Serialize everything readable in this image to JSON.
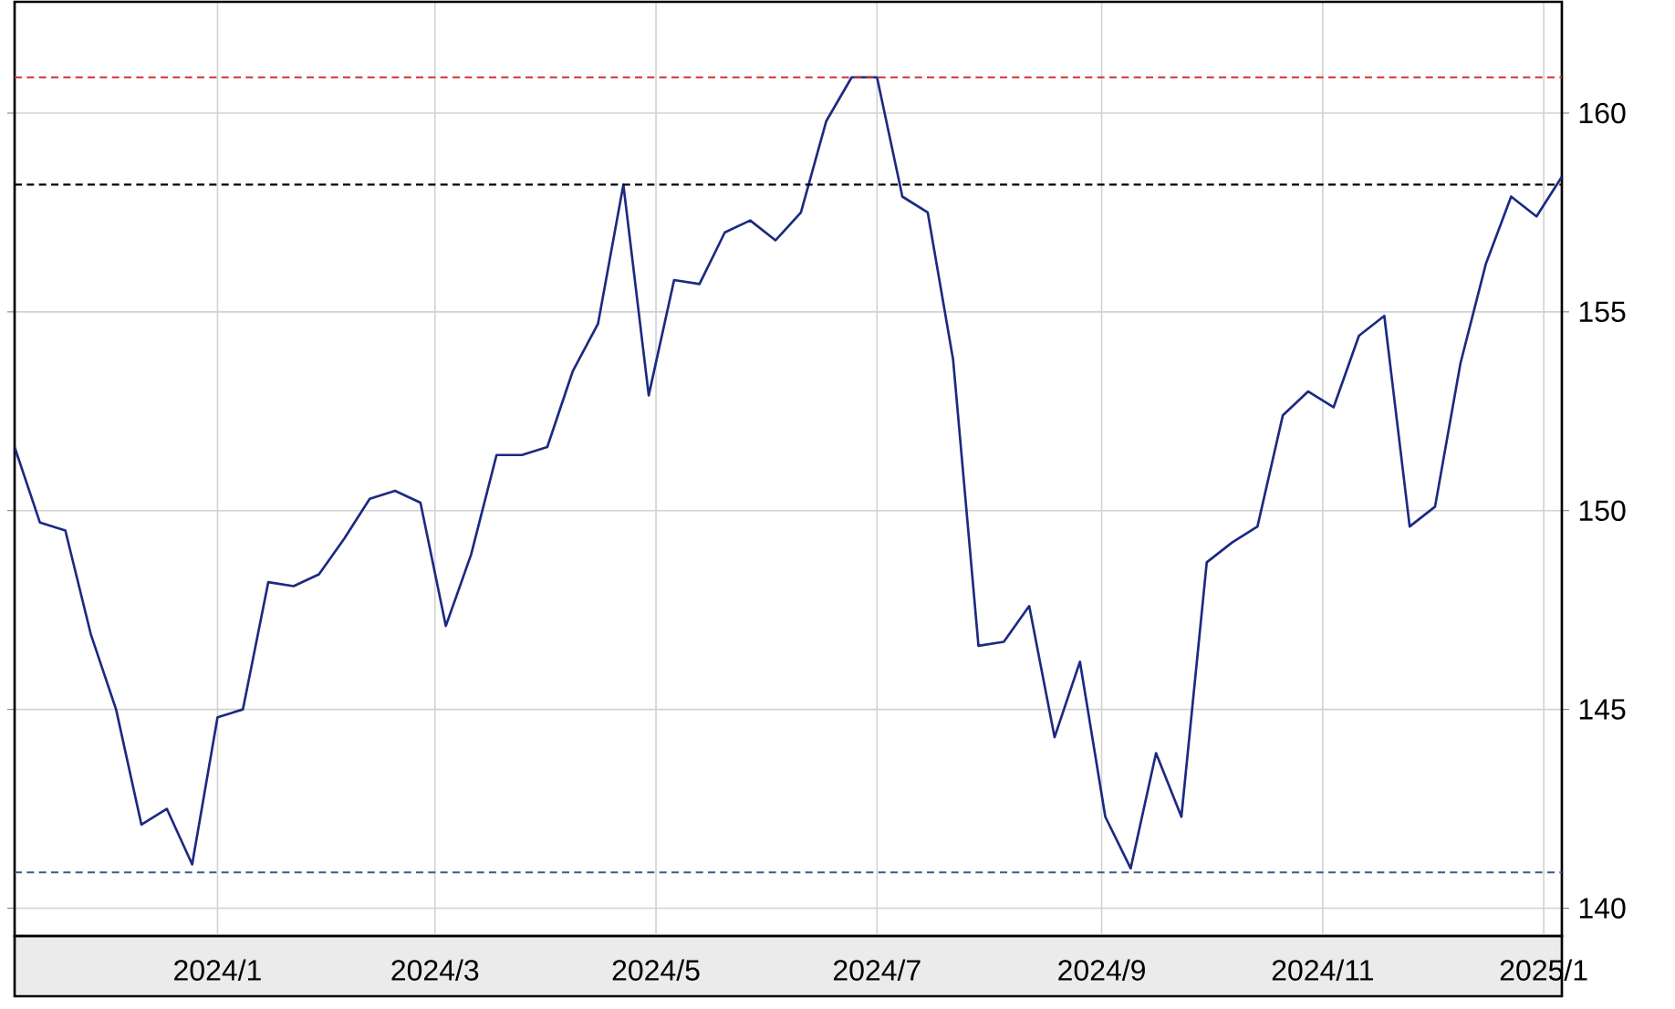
{
  "chart_data": {
    "type": "line",
    "x": [
      "2023-11-06",
      "2023-11-13",
      "2023-11-20",
      "2023-11-27",
      "2023-12-04",
      "2023-12-11",
      "2023-12-18",
      "2023-12-25",
      "2024-01-01",
      "2024-01-08",
      "2024-01-15",
      "2024-01-22",
      "2024-01-29",
      "2024-02-05",
      "2024-02-12",
      "2024-02-19",
      "2024-02-26",
      "2024-03-04",
      "2024-03-11",
      "2024-03-18",
      "2024-03-25",
      "2024-04-01",
      "2024-04-08",
      "2024-04-15",
      "2024-04-22",
      "2024-04-29",
      "2024-05-06",
      "2024-05-13",
      "2024-05-20",
      "2024-05-27",
      "2024-06-03",
      "2024-06-10",
      "2024-06-17",
      "2024-06-24",
      "2024-07-01",
      "2024-07-08",
      "2024-07-15",
      "2024-07-22",
      "2024-07-29",
      "2024-08-05",
      "2024-08-12",
      "2024-08-19",
      "2024-08-26",
      "2024-09-02",
      "2024-09-09",
      "2024-09-16",
      "2024-09-23",
      "2024-09-30",
      "2024-10-07",
      "2024-10-14",
      "2024-10-21",
      "2024-10-28",
      "2024-11-04",
      "2024-11-11",
      "2024-11-18",
      "2024-11-25",
      "2024-12-02",
      "2024-12-09",
      "2024-12-16",
      "2024-12-23",
      "2024-12-30",
      "2025-01-06"
    ],
    "series": [
      {
        "color": "#1c2a80",
        "values": [
          151.6,
          149.7,
          149.5,
          146.9,
          145.0,
          142.1,
          142.5,
          141.1,
          144.8,
          145.0,
          148.2,
          148.1,
          148.4,
          149.3,
          150.3,
          150.5,
          150.2,
          147.1,
          148.9,
          151.4,
          151.4,
          151.6,
          153.5,
          154.7,
          158.2,
          152.9,
          155.8,
          155.7,
          157.0,
          157.3,
          156.8,
          157.5,
          159.8,
          160.9,
          160.9,
          157.9,
          157.5,
          153.8,
          146.6,
          146.7,
          147.6,
          144.3,
          146.2,
          142.3,
          141.0,
          143.9,
          142.3,
          148.7,
          149.2,
          149.6,
          152.4,
          153.0,
          152.6,
          154.4,
          154.9,
          149.6,
          150.1,
          153.7,
          156.2,
          157.9,
          157.4,
          158.4
        ]
      }
    ],
    "xlim": [
      "2023-11-06",
      "2025-01-06"
    ],
    "ylim": [
      139.3,
      162.8
    ],
    "xticks": [
      {
        "value": "2024-01-01",
        "label": "2024/1"
      },
      {
        "value": "2024-03-01",
        "label": "2024/3"
      },
      {
        "value": "2024-05-01",
        "label": "2024/5"
      },
      {
        "value": "2024-07-01",
        "label": "2024/7"
      },
      {
        "value": "2024-09-01",
        "label": "2024/9"
      },
      {
        "value": "2024-11-01",
        "label": "2024/11"
      },
      {
        "value": "2025-01-01",
        "label": "2025/1"
      }
    ],
    "yticks": [
      140,
      145,
      150,
      155,
      160
    ],
    "grid": true,
    "ref_lines": [
      {
        "axis": "y",
        "value": 160.9,
        "color": "#cc3333",
        "line_style": "dashed"
      },
      {
        "axis": "y",
        "value": 158.2,
        "color": "#000000",
        "line_style": "dashed"
      },
      {
        "axis": "y",
        "value": 140.9,
        "color": "#3a5a8c",
        "line_style": "dashed"
      }
    ]
  }
}
